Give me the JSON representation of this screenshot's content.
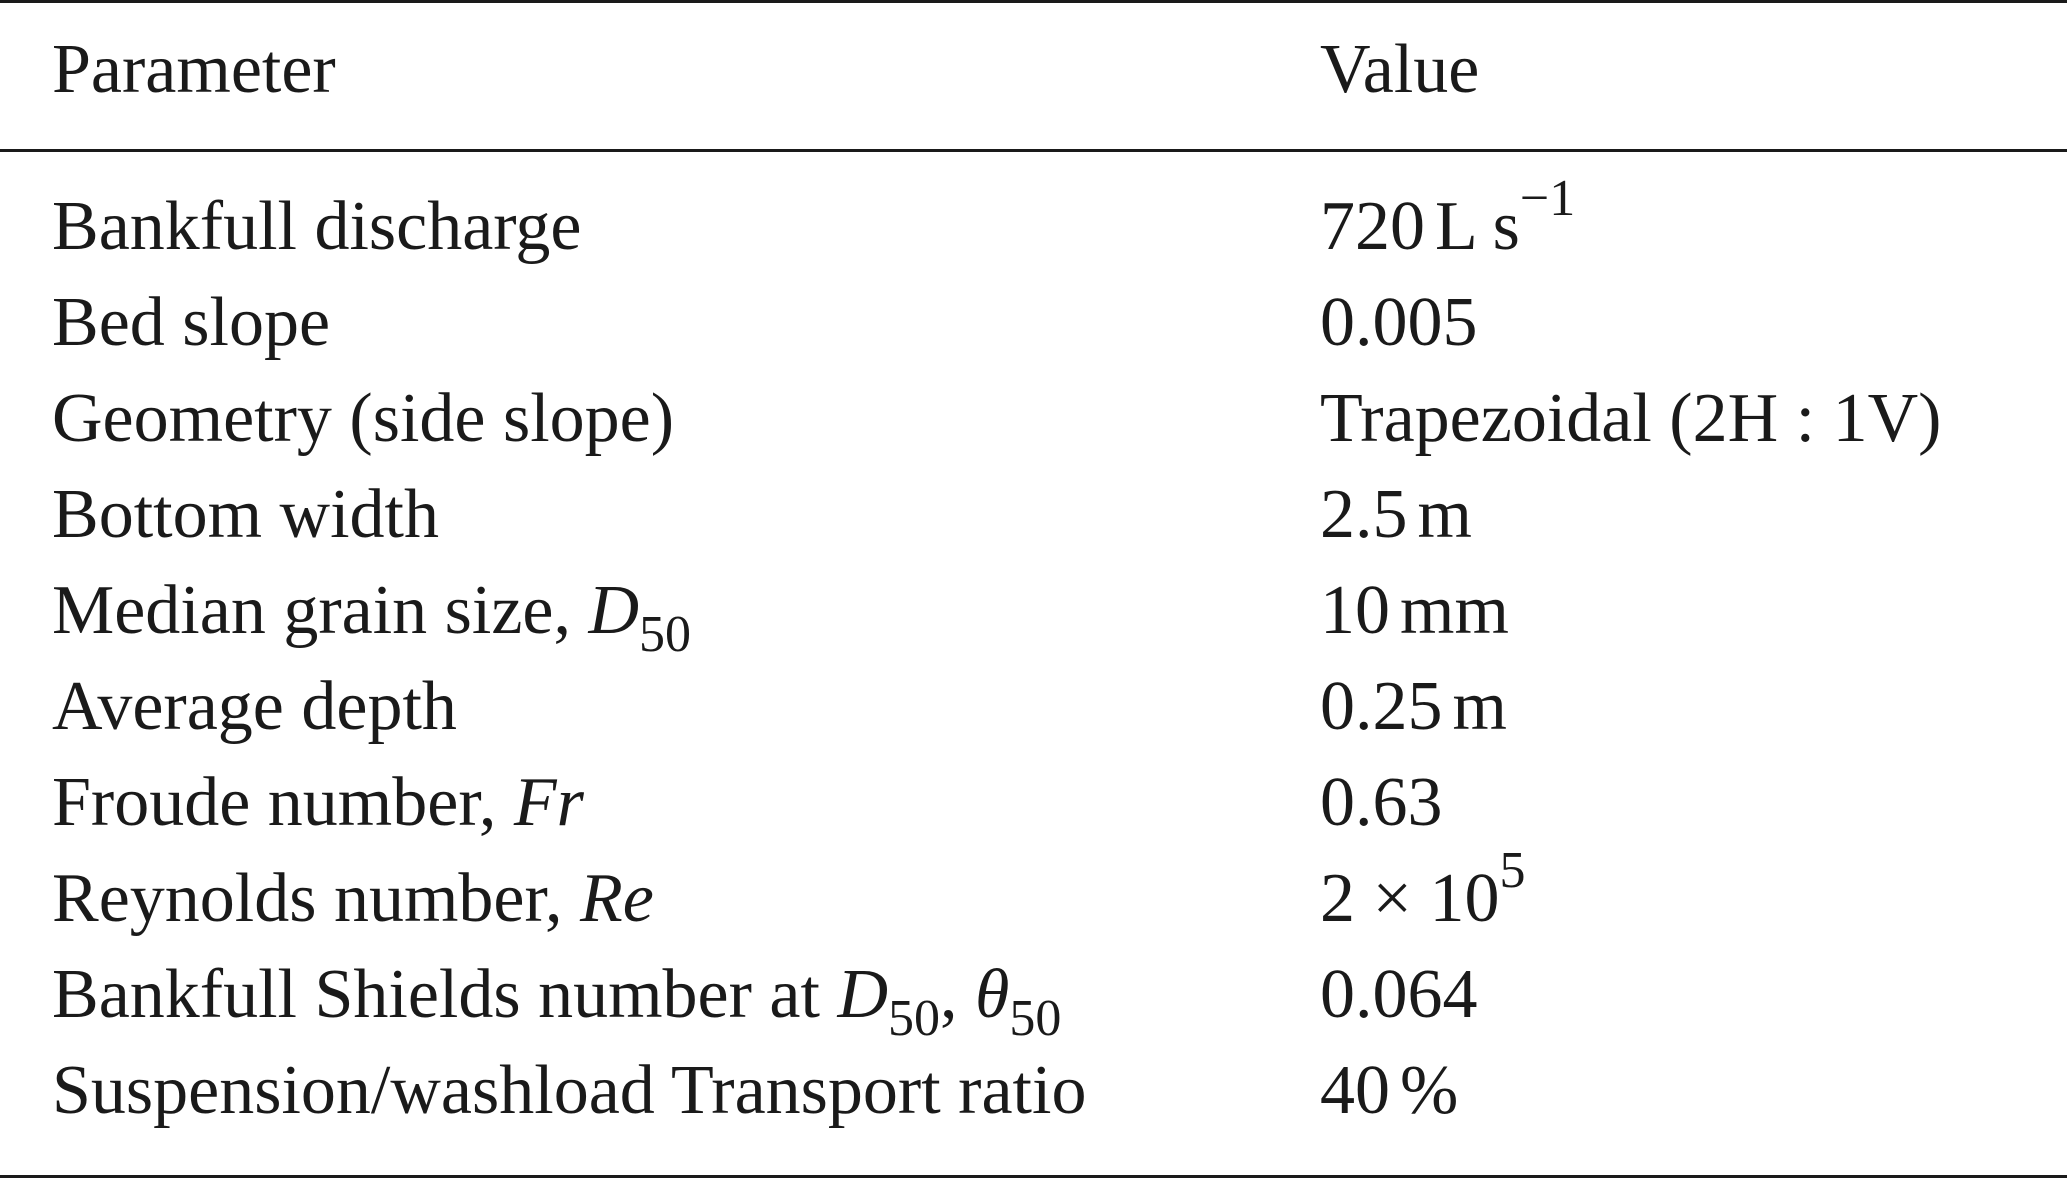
{
  "table": {
    "headers": {
      "parameter": "Parameter",
      "value": "Value"
    },
    "rows": [
      {
        "parameter": "Bankfull discharge",
        "value_num": "720",
        "value_unit": "L s",
        "value_sup": "−1"
      },
      {
        "parameter": "Bed slope",
        "value": "0.005"
      },
      {
        "parameter": "Geometry (side slope)",
        "value": "Trapezoidal (2H : 1V)"
      },
      {
        "parameter": "Bottom width",
        "value_num": "2.5",
        "value_unit": "m"
      },
      {
        "parameter_text": "Median grain size, ",
        "parameter_sym": "D",
        "parameter_sub": "50",
        "value_num": "10",
        "value_unit": "mm"
      },
      {
        "parameter": "Average depth",
        "value_num": "0.25",
        "value_unit": "m"
      },
      {
        "parameter_text": "Froude number, ",
        "parameter_sym": "Fr",
        "value": "0.63"
      },
      {
        "parameter_text": "Reynolds number, ",
        "parameter_sym": "Re",
        "value_base": "2 × 10",
        "value_sup": "5"
      },
      {
        "parameter_text": "Bankfull Shields number at ",
        "parameter_sym": "D",
        "parameter_sub": "50",
        "parameter_sep": ", ",
        "parameter_sym2": "θ",
        "parameter_sub2": "50",
        "value": "0.064"
      },
      {
        "parameter": "Suspension/washload Transport ratio",
        "value_num": "40",
        "value_unit": "%"
      }
    ]
  }
}
